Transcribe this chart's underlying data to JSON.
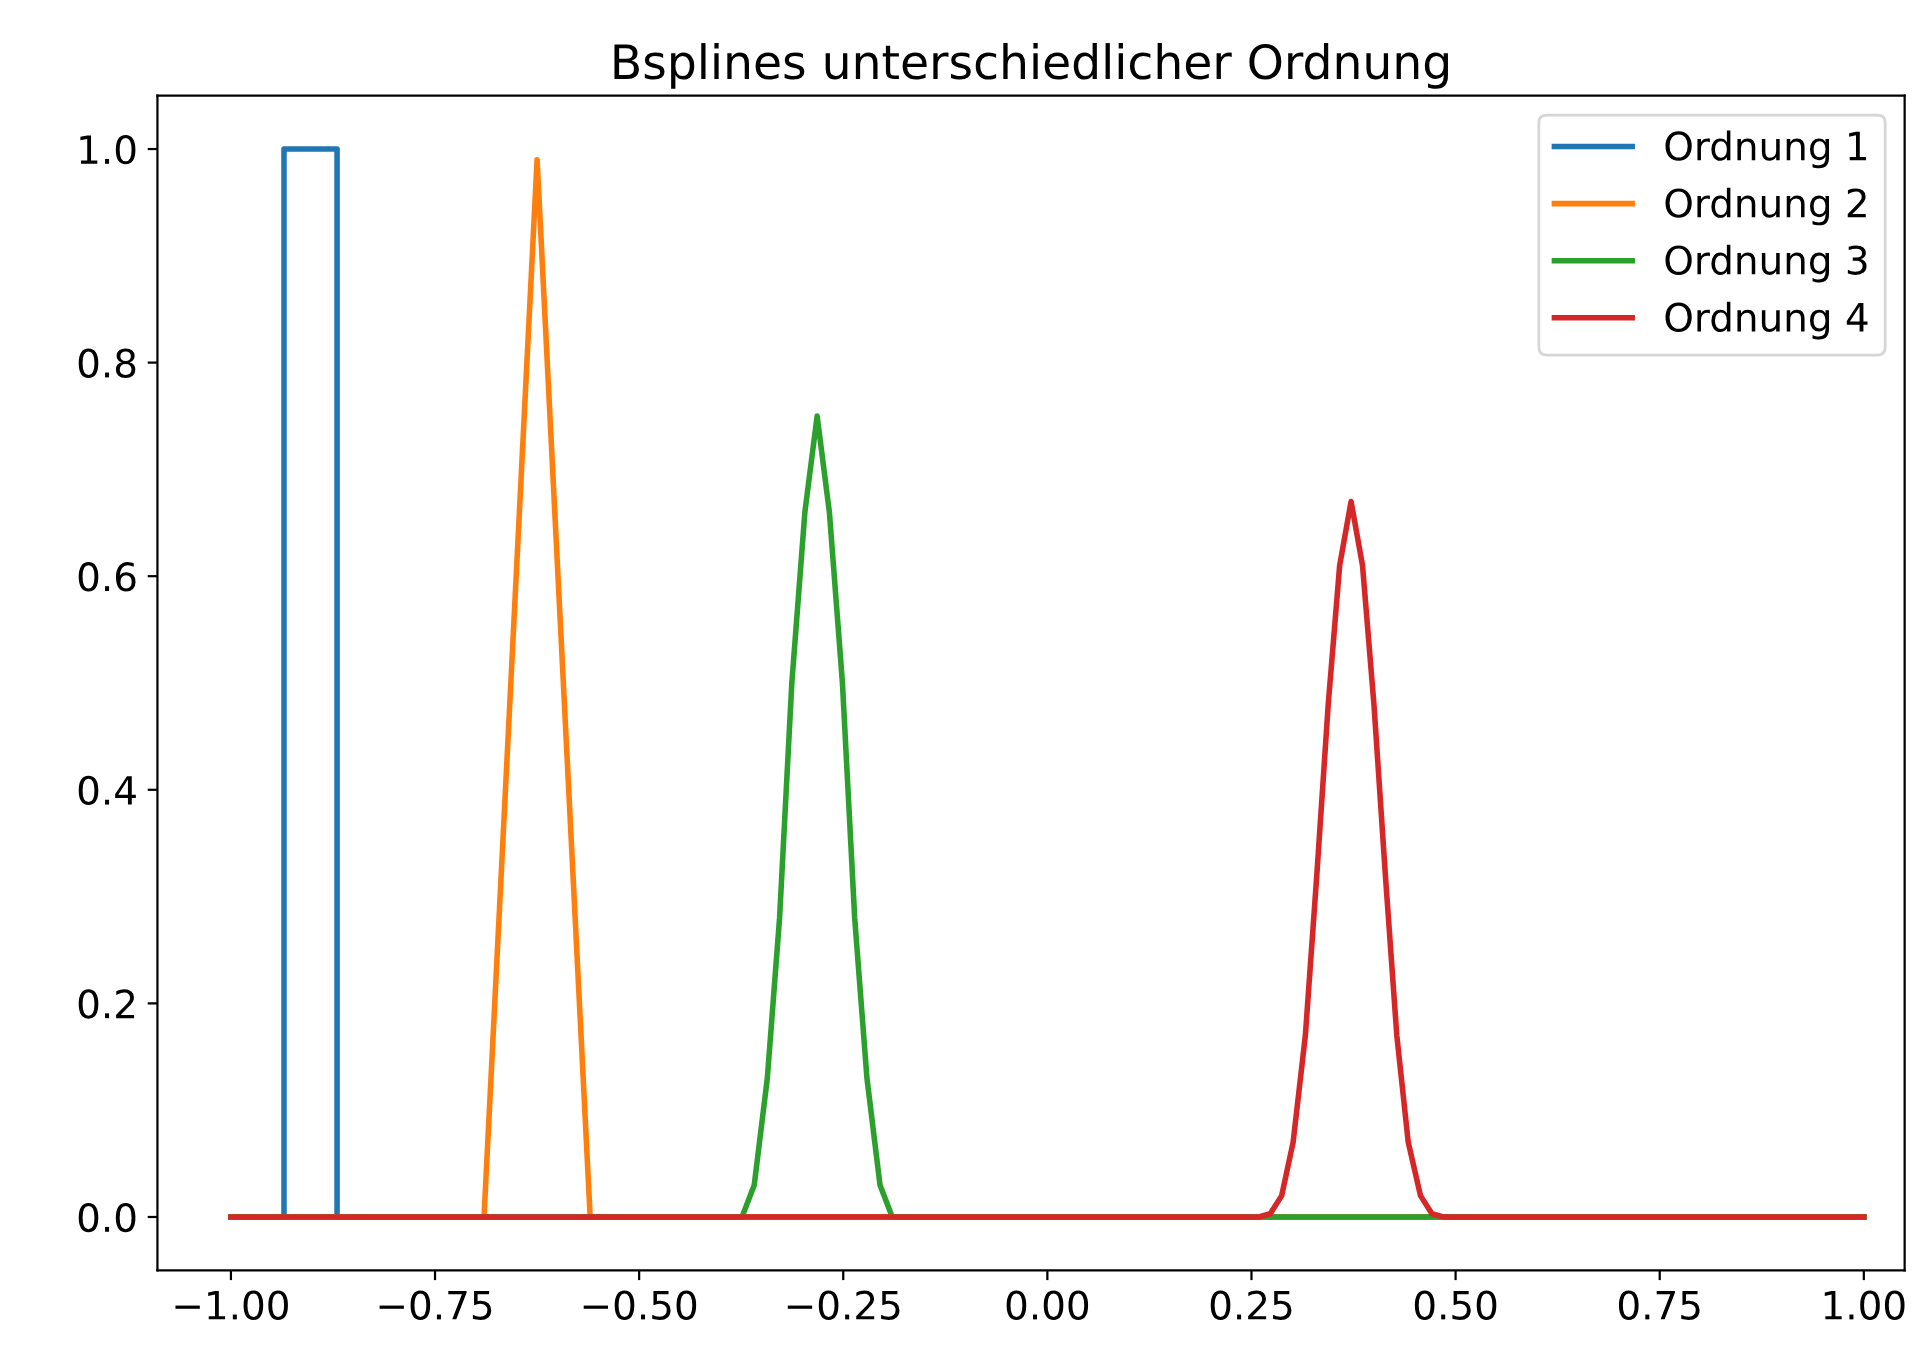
{
  "chart_data": {
    "type": "line",
    "title": "Bsplines unterschiedlicher Ordnung",
    "xlim": [
      -1.09,
      1.05
    ],
    "ylim": [
      -0.05,
      1.05
    ],
    "xticks": [
      {
        "value": -1,
        "label": "−1.00"
      },
      {
        "value": -0.75,
        "label": "−0.75"
      },
      {
        "value": -0.5,
        "label": "−0.50"
      },
      {
        "value": -0.25,
        "label": "−0.25"
      },
      {
        "value": 0,
        "label": "0.00"
      },
      {
        "value": 0.25,
        "label": "0.25"
      },
      {
        "value": 0.5,
        "label": "0.50"
      },
      {
        "value": 0.75,
        "label": "0.75"
      },
      {
        "value": 1,
        "label": "1.00"
      }
    ],
    "yticks": [
      {
        "value": 0,
        "label": "0.0"
      },
      {
        "value": 0.2,
        "label": "0.2"
      },
      {
        "value": 0.4,
        "label": "0.4"
      },
      {
        "value": 0.6,
        "label": "0.6"
      },
      {
        "value": 0.8,
        "label": "0.8"
      },
      {
        "value": 1,
        "label": "1.0"
      }
    ],
    "grid": false,
    "legend": "top right",
    "marker": "none",
    "line_style": "solid",
    "series": [
      {
        "name": "Ordnung 1",
        "color": "#1f77b4",
        "x": [
          -1,
          -0.935,
          -0.935,
          -0.87,
          -0.87,
          1
        ],
        "values": [
          0,
          0,
          1,
          1,
          0,
          0
        ]
      },
      {
        "name": "Ordnung 2",
        "color": "#ff7f0e",
        "x": [
          -1,
          -0.69,
          -0.625,
          -0.56,
          1
        ],
        "values": [
          0,
          0,
          0.99,
          0,
          0
        ]
      },
      {
        "name": "Ordnung 3",
        "color": "#2ca02c",
        "x": [
          -1,
          -0.374,
          -0.359,
          -0.343,
          -0.328,
          -0.313,
          -0.297,
          -0.282,
          -0.267,
          -0.251,
          -0.236,
          -0.221,
          -0.205,
          -0.19,
          1
        ],
        "values": [
          0,
          0,
          0.03,
          0.13,
          0.28,
          0.5,
          0.66,
          0.75,
          0.66,
          0.5,
          0.28,
          0.13,
          0.03,
          0,
          0
        ]
      },
      {
        "name": "Ordnung 4",
        "color": "#d62728",
        "x": [
          -1,
          0.259,
          0.273,
          0.287,
          0.301,
          0.316,
          0.33,
          0.344,
          0.358,
          0.372,
          0.386,
          0.4,
          0.414,
          0.428,
          0.442,
          0.457,
          0.471,
          0.485,
          1
        ],
        "values": [
          0,
          0,
          0.003,
          0.02,
          0.07,
          0.17,
          0.32,
          0.48,
          0.61,
          0.67,
          0.61,
          0.48,
          0.32,
          0.17,
          0.07,
          0.02,
          0.003,
          0,
          0
        ]
      }
    ]
  }
}
